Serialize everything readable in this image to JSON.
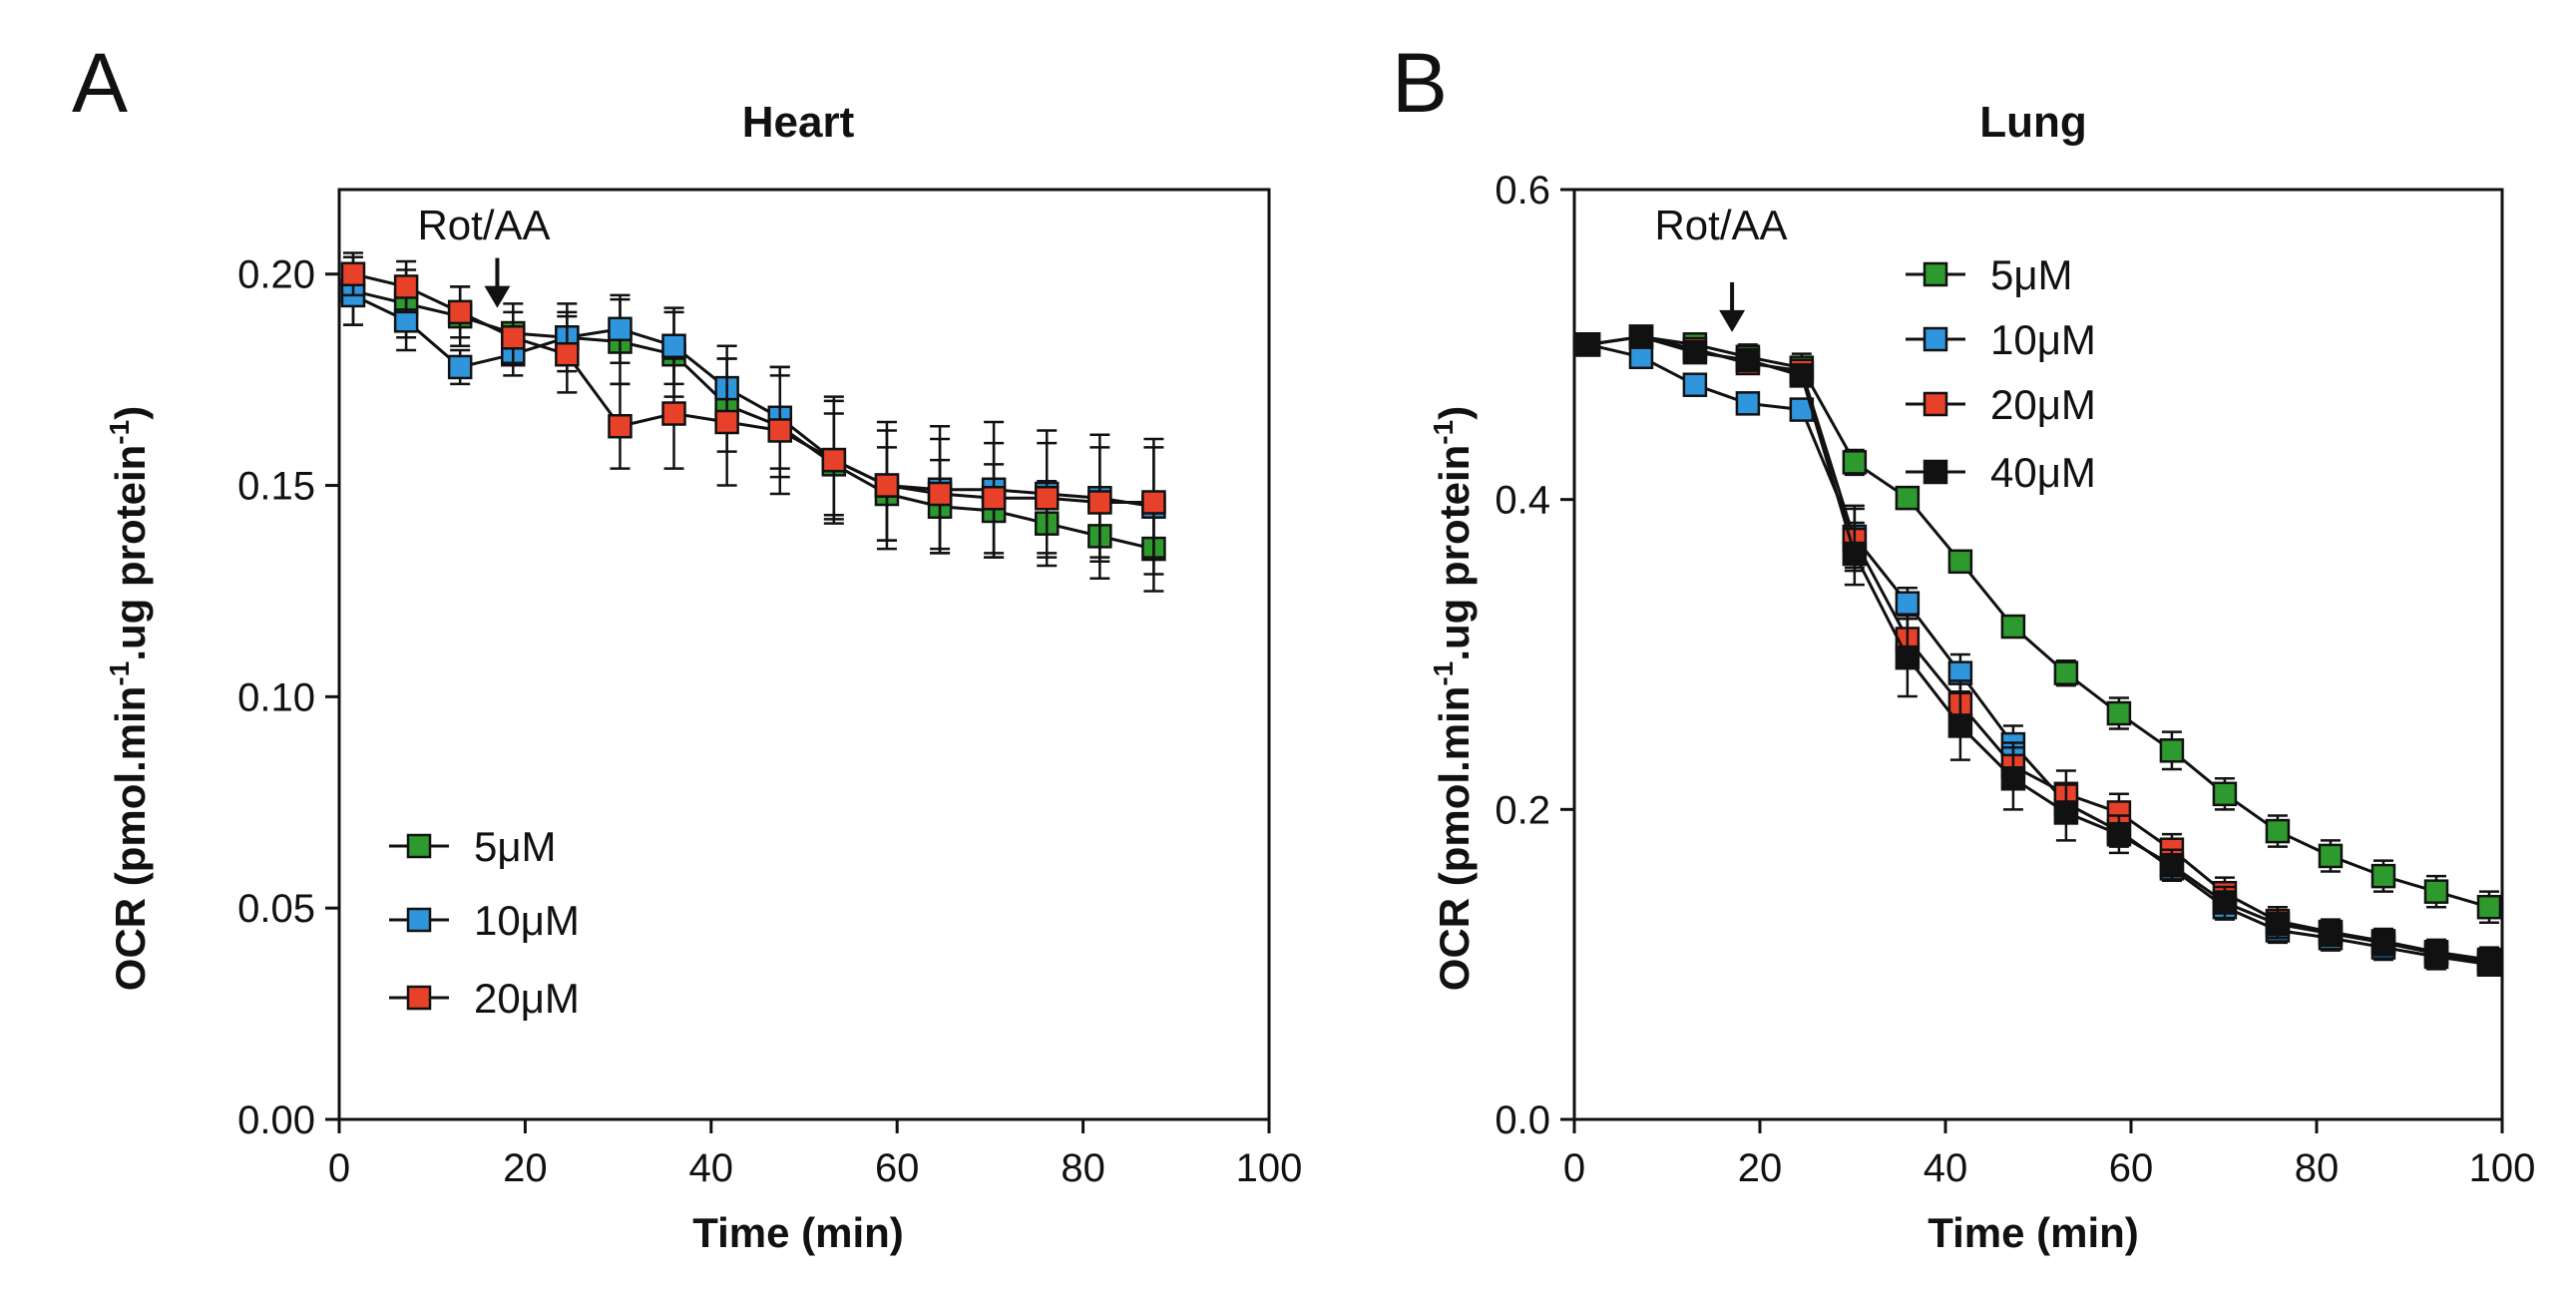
{
  "panels": [
    {
      "letter": "A",
      "title": "Heart"
    },
    {
      "letter": "B",
      "title": "Lung"
    }
  ],
  "chart_data": [
    {
      "type": "line",
      "title": "Heart",
      "xlabel": "Time (min)",
      "ylabel_main": "OCR (pmol.min",
      "ylabel_sup1": "-1",
      "ylabel_mid": ".ug protein",
      "ylabel_sup2": "-1",
      "ylabel_end": ")",
      "xlim": [
        0,
        100
      ],
      "ylim": [
        0,
        0.22
      ],
      "xticks": [
        0,
        20,
        40,
        60,
        80,
        100
      ],
      "xtick_labels": [
        "0",
        "20",
        "40",
        "60",
        "80",
        "100"
      ],
      "yticks": [
        0,
        0.05,
        0.1,
        0.15,
        0.2
      ],
      "ytick_labels": [
        "0.00",
        "0.05",
        "0.10",
        "0.15",
        "0.20"
      ],
      "legend_position": "bottom-left",
      "annotation": {
        "text": "Rot/AA",
        "x": 17,
        "y_tip": 0.192
      },
      "x": [
        1.5,
        7.2,
        13,
        18.7,
        24.5,
        30.2,
        36,
        41.7,
        47.4,
        53.2,
        58.9,
        64.6,
        70.4,
        76.1,
        81.8,
        87.6
      ],
      "series": [
        {
          "name": "5μM",
          "color": "#2e9a2e",
          "values": [
            0.196,
            0.193,
            0.19,
            0.186,
            0.185,
            0.184,
            0.181,
            0.169,
            0.164,
            0.155,
            0.148,
            0.145,
            0.144,
            0.141,
            0.138,
            0.135
          ],
          "errors": [
            0.008,
            0.008,
            0.007,
            0.007,
            0.008,
            0.01,
            0.01,
            0.011,
            0.012,
            0.012,
            0.011,
            0.011,
            0.011,
            0.01,
            0.01,
            0.01
          ]
        },
        {
          "name": "10μM",
          "color": "#2f95dc",
          "values": [
            0.195,
            0.189,
            0.178,
            0.181,
            0.185,
            0.187,
            0.183,
            0.173,
            0.166,
            0.156,
            0.15,
            0.149,
            0.149,
            0.148,
            0.147,
            0.145
          ],
          "errors": [
            0.007,
            0.007,
            0.004,
            0.005,
            0.006,
            0.008,
            0.009,
            0.01,
            0.012,
            0.015,
            0.015,
            0.015,
            0.016,
            0.015,
            0.015,
            0.016
          ]
        },
        {
          "name": "20μM",
          "color": "#e8412a",
          "values": [
            0.2,
            0.197,
            0.191,
            0.185,
            0.181,
            0.164,
            0.167,
            0.165,
            0.163,
            0.156,
            0.15,
            0.148,
            0.147,
            0.147,
            0.146,
            0.146
          ],
          "errors": [
            0.005,
            0.006,
            0.006,
            0.006,
            0.009,
            0.01,
            0.013,
            0.015,
            0.015,
            0.014,
            0.013,
            0.013,
            0.013,
            0.013,
            0.013,
            0.013
          ]
        }
      ]
    },
    {
      "type": "line",
      "title": "Lung",
      "xlabel": "Time (min)",
      "ylabel_main": "OCR (pmol.min",
      "ylabel_sup1": "-1",
      "ylabel_mid": ".ug protein",
      "ylabel_sup2": "-1",
      "ylabel_end": ")",
      "xlim": [
        0,
        100
      ],
      "ylim": [
        0,
        0.6
      ],
      "xticks": [
        0,
        20,
        40,
        60,
        80,
        100
      ],
      "xtick_labels": [
        "0",
        "20",
        "40",
        "60",
        "80",
        "100"
      ],
      "yticks": [
        0,
        0.2,
        0.4,
        0.6
      ],
      "ytick_labels": [
        "0.0",
        "0.2",
        "0.4",
        "0.6"
      ],
      "legend_position": "top-center",
      "annotation": {
        "text": "Rot/AA",
        "x": 17,
        "y_tip": 0.508
      },
      "x": [
        1.5,
        7.2,
        13,
        18.7,
        24.5,
        30.2,
        35.9,
        41.6,
        47.3,
        53,
        58.7,
        64.4,
        70.1,
        75.8,
        81.5,
        87.2,
        92.9,
        98.6
      ],
      "series": [
        {
          "name": "5μM",
          "color": "#2e9a2e",
          "values": [
            0.5,
            0.505,
            0.5,
            0.492,
            0.485,
            0.424,
            0.401,
            0.36,
            0.318,
            0.288,
            0.262,
            0.238,
            0.21,
            0.186,
            0.17,
            0.157,
            0.147,
            0.137
          ],
          "errors": [
            0.005,
            0.006,
            0.007,
            0.008,
            0.009,
            0.008,
            0.006,
            0.006,
            0.006,
            0.008,
            0.01,
            0.012,
            0.01,
            0.01,
            0.01,
            0.01,
            0.01,
            0.01
          ]
        },
        {
          "name": "10μM",
          "color": "#2f95dc",
          "values": [
            0.5,
            0.492,
            0.474,
            0.462,
            0.458,
            0.376,
            0.333,
            0.288,
            0.242,
            0.204,
            0.186,
            0.162,
            0.137,
            0.122,
            0.117,
            0.111,
            0.105,
            0.1
          ],
          "errors": [
            0.005,
            0.005,
            0.005,
            0.005,
            0.006,
            0.02,
            0.01,
            0.012,
            0.012,
            0.01,
            0.01,
            0.008,
            0.008,
            0.008,
            0.008,
            0.008,
            0.008,
            0.007
          ]
        },
        {
          "name": "20μM",
          "color": "#e8412a",
          "values": [
            0.5,
            0.505,
            0.497,
            0.488,
            0.483,
            0.374,
            0.31,
            0.268,
            0.228,
            0.21,
            0.198,
            0.174,
            0.146,
            0.128,
            0.121,
            0.115,
            0.108,
            0.103
          ],
          "errors": [
            0.005,
            0.005,
            0.006,
            0.006,
            0.007,
            0.02,
            0.015,
            0.015,
            0.015,
            0.015,
            0.012,
            0.01,
            0.01,
            0.009,
            0.008,
            0.008,
            0.008,
            0.008
          ]
        },
        {
          "name": "40μM",
          "color": "#111111",
          "values": [
            0.5,
            0.505,
            0.495,
            0.49,
            0.48,
            0.365,
            0.298,
            0.254,
            0.22,
            0.198,
            0.184,
            0.164,
            0.14,
            0.126,
            0.12,
            0.114,
            0.107,
            0.101
          ],
          "errors": [
            0.005,
            0.005,
            0.006,
            0.006,
            0.007,
            0.02,
            0.025,
            0.022,
            0.02,
            0.018,
            0.012,
            0.01,
            0.01,
            0.009,
            0.008,
            0.008,
            0.008,
            0.008
          ]
        }
      ]
    }
  ]
}
